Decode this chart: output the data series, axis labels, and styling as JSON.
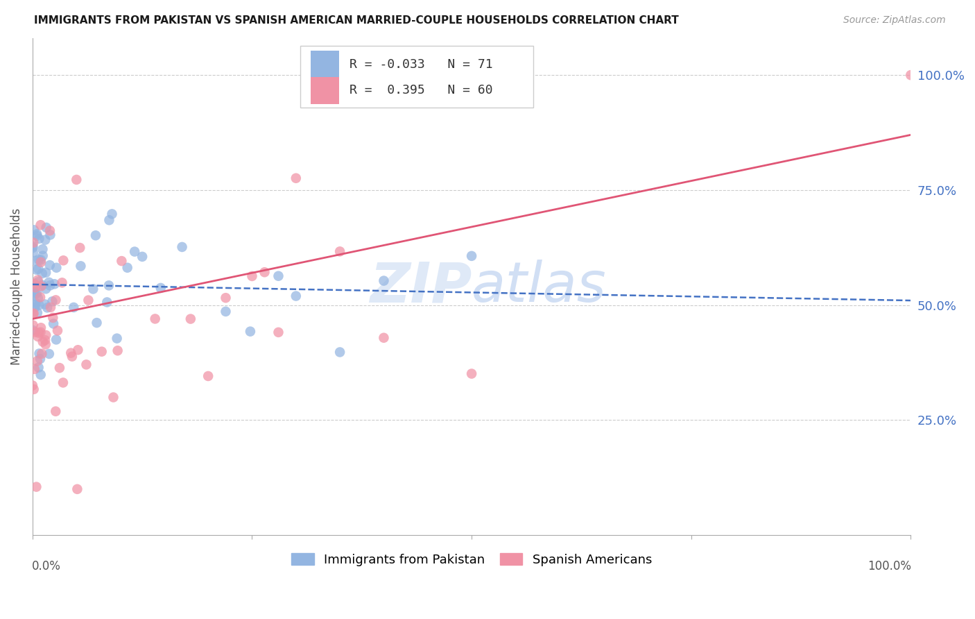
{
  "title": "IMMIGRANTS FROM PAKISTAN VS SPANISH AMERICAN MARRIED-COUPLE HOUSEHOLDS CORRELATION CHART",
  "source": "Source: ZipAtlas.com",
  "ylabel": "Married-couple Households",
  "legend_blue_r": "-0.033",
  "legend_blue_n": "71",
  "legend_pink_r": "0.395",
  "legend_pink_n": "60",
  "blue_color": "#93b5e1",
  "pink_color": "#f092a5",
  "blue_line_color": "#4472c4",
  "pink_line_color": "#e05575",
  "right_tick_color": "#4472c4",
  "grid_color": "#cccccc",
  "blue_trend": [
    0.0,
    1.0,
    0.545,
    0.51
  ],
  "pink_trend": [
    0.0,
    1.0,
    0.47,
    0.87
  ]
}
